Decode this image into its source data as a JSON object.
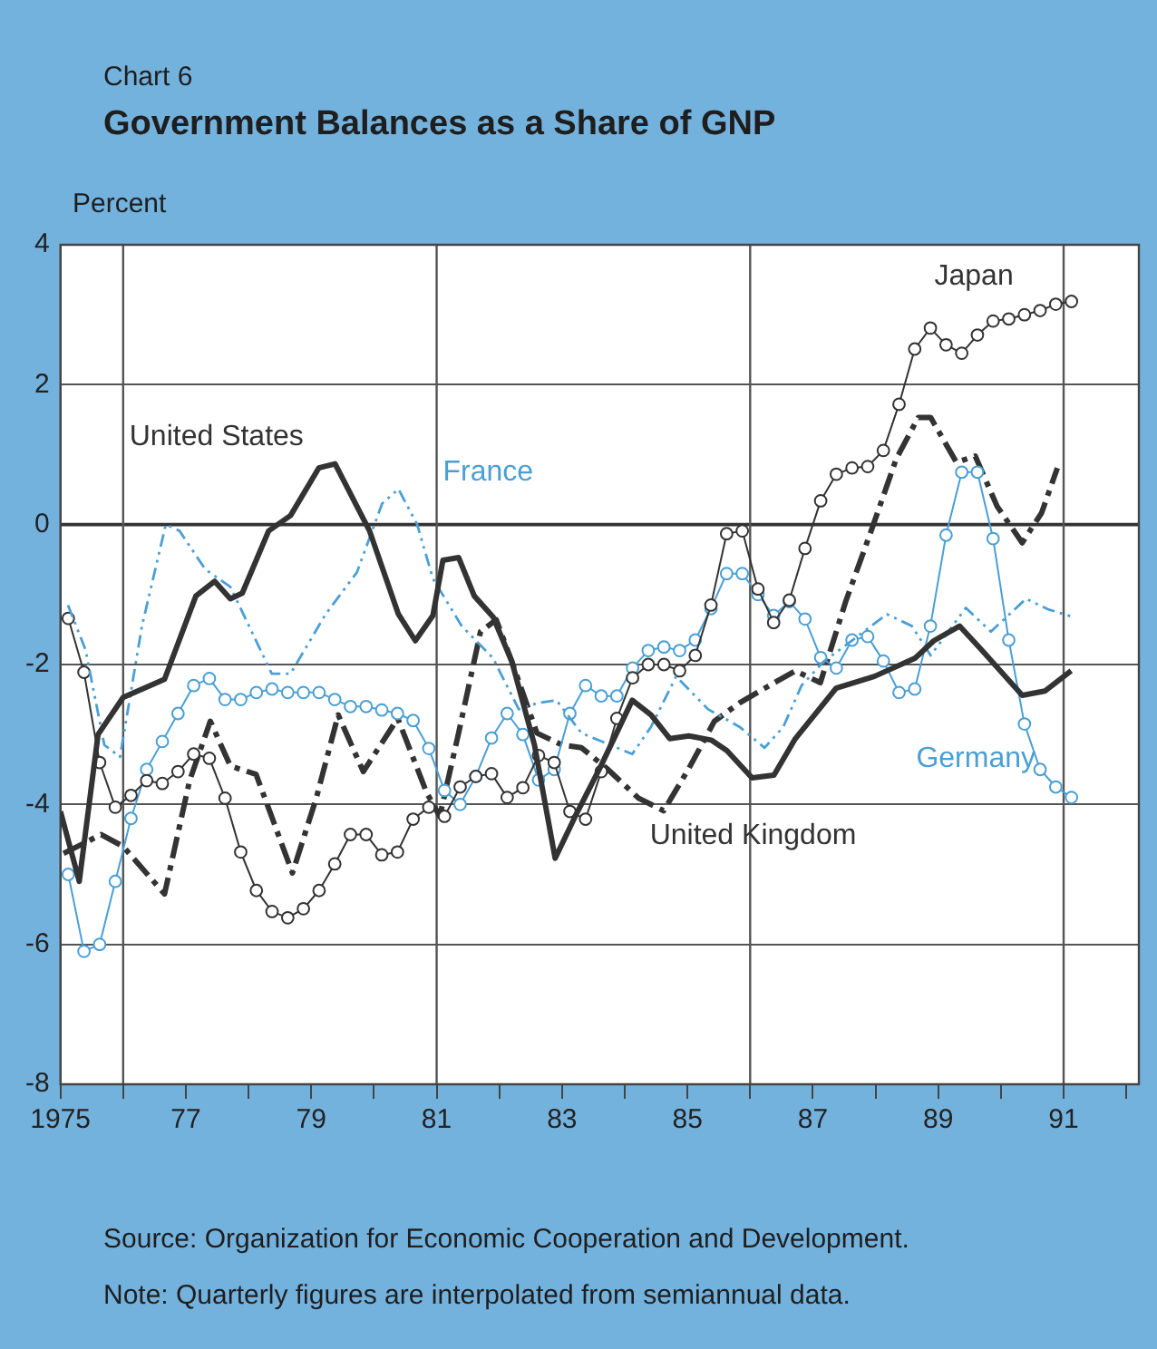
{
  "chart_data": {
    "type": "line",
    "subtitle": "Chart 6",
    "title": "Government Balances as a Share of GNP",
    "ylabel": "Percent",
    "xlim": [
      1975,
      1992.2
    ],
    "ylim": [
      -8,
      4
    ],
    "yticks": [
      -8,
      -6,
      -4,
      -2,
      0,
      2,
      4
    ],
    "xticks": [
      1975,
      {
        "value": 1976,
        "label": null
      },
      {
        "value": 1977,
        "label": "77"
      },
      {
        "value": 1978,
        "label": null
      },
      {
        "value": 1979,
        "label": "79"
      },
      {
        "value": 1980,
        "label": null
      },
      {
        "value": 1981,
        "label": "81"
      },
      {
        "value": 1982,
        "label": null
      },
      {
        "value": 1983,
        "label": "83"
      },
      {
        "value": 1984,
        "label": null
      },
      {
        "value": 1985,
        "label": "85"
      },
      {
        "value": 1986,
        "label": null
      },
      {
        "value": 1987,
        "label": "87"
      },
      {
        "value": 1988,
        "label": null
      },
      {
        "value": 1989,
        "label": "89"
      },
      {
        "value": 1990,
        "label": null
      },
      {
        "value": 1991,
        "label": "91"
      },
      {
        "value": 1992,
        "label": null
      }
    ],
    "grid": "y",
    "legend": false,
    "ref_lines": [
      {
        "axis": "y",
        "value": 0,
        "color": "#333333"
      },
      {
        "axis": "x",
        "value": 1976,
        "color": "#555555"
      },
      {
        "axis": "x",
        "value": 1981,
        "color": "#555555"
      },
      {
        "axis": "x",
        "value": 1986,
        "color": "#555555"
      },
      {
        "axis": "x",
        "value": 1991,
        "color": "#555555"
      }
    ],
    "series": [
      {
        "name": "United States",
        "color": "#333333",
        "line_style": "solid",
        "marker": "none",
        "x": [
          1975.0,
          1975.3,
          1975.6,
          1976.0,
          1976.66,
          1977.16,
          1977.46,
          1977.71,
          1977.9,
          1978.32,
          1978.67,
          1979.12,
          1979.38,
          1979.93,
          1980.39,
          1980.66,
          1980.94,
          1981.1,
          1981.35,
          1981.6,
          1981.9,
          1982.2,
          1982.56,
          1982.89,
          1983.21,
          1983.62,
          1984.12,
          1984.42,
          1984.72,
          1985.02,
          1985.38,
          1985.63,
          1986.03,
          1986.38,
          1986.72,
          1987.37,
          1987.98,
          1988.63,
          1988.93,
          1989.34,
          1989.69,
          1990.34,
          1990.7,
          1991.12
        ],
        "values": [
          -4.1,
          -5.1,
          -3.0,
          -2.47,
          -2.21,
          -1.02,
          -0.81,
          -1.06,
          -0.98,
          -0.09,
          0.13,
          0.81,
          0.87,
          -0.09,
          -1.28,
          -1.66,
          -1.3,
          -0.51,
          -0.47,
          -1.02,
          -1.32,
          -1.96,
          -3.15,
          -4.77,
          -4.17,
          -3.45,
          -2.51,
          -2.72,
          -3.06,
          -3.02,
          -3.08,
          -3.23,
          -3.62,
          -3.58,
          -3.06,
          -2.34,
          -2.17,
          -1.91,
          -1.66,
          -1.45,
          -1.79,
          -2.44,
          -2.38,
          -2.09
        ]
      },
      {
        "name": "France",
        "color": "#4a9fd5",
        "line_style": "dotted",
        "marker": "none",
        "x": [
          1975.12,
          1975.4,
          1975.7,
          1975.95,
          1976.3,
          1976.68,
          1976.9,
          1977.31,
          1977.71,
          1978.37,
          1978.67,
          1979.23,
          1979.73,
          1980.13,
          1980.39,
          1980.69,
          1980.94,
          1981.4,
          1981.9,
          1982.31,
          1982.61,
          1982.91,
          1983.31,
          1984.12,
          1984.42,
          1984.82,
          1985.33,
          1985.83,
          1986.23,
          1986.53,
          1986.82,
          1987.17,
          1987.62,
          1988.18,
          1988.58,
          1988.88,
          1989.44,
          1989.84,
          1990.09,
          1990.4,
          1990.75,
          1991.15
        ],
        "values": [
          -1.15,
          -1.79,
          -3.15,
          -3.32,
          -1.45,
          0.0,
          -0.09,
          -0.64,
          -0.89,
          -2.13,
          -2.13,
          -1.28,
          -0.68,
          0.3,
          0.51,
          0.0,
          -0.77,
          -1.45,
          -1.91,
          -2.64,
          -2.55,
          -2.51,
          -2.98,
          -3.28,
          -2.89,
          -2.17,
          -2.64,
          -2.89,
          -3.19,
          -2.89,
          -2.3,
          -1.96,
          -1.66,
          -1.28,
          -1.45,
          -1.87,
          -1.19,
          -1.53,
          -1.32,
          -1.06,
          -1.21,
          -1.32
        ]
      },
      {
        "name": "Japan",
        "color": "#333333",
        "line_style": "solid",
        "marker": "circle",
        "x": [
          1975.125,
          1975.375,
          1975.625,
          1975.875,
          1976.125,
          1976.375,
          1976.625,
          1976.875,
          1977.125,
          1977.375,
          1977.625,
          1977.875,
          1978.125,
          1978.375,
          1978.625,
          1978.875,
          1979.125,
          1979.375,
          1979.625,
          1979.875,
          1980.125,
          1980.375,
          1980.625,
          1980.875,
          1981.125,
          1981.375,
          1981.625,
          1981.875,
          1982.125,
          1982.375,
          1982.625,
          1982.875,
          1983.125,
          1983.375,
          1983.625,
          1983.875,
          1984.125,
          1984.375,
          1984.625,
          1984.875,
          1985.125,
          1985.375,
          1985.625,
          1985.875,
          1986.125,
          1986.375,
          1986.625,
          1986.875,
          1987.125,
          1987.375,
          1987.625,
          1987.875,
          1988.125,
          1988.375,
          1988.625,
          1988.875,
          1989.125,
          1989.375,
          1989.625,
          1989.875,
          1990.125,
          1990.375,
          1990.625,
          1990.875,
          1991.125
        ],
        "values": [
          -1.34,
          -2.11,
          -3.4,
          -4.04,
          -3.87,
          -3.66,
          -3.7,
          -3.53,
          -3.28,
          -3.34,
          -3.91,
          -4.68,
          -5.23,
          -5.53,
          -5.62,
          -5.49,
          -5.23,
          -4.85,
          -4.43,
          -4.43,
          -4.72,
          -4.68,
          -4.21,
          -4.04,
          -4.17,
          -3.75,
          -3.6,
          -3.56,
          -3.9,
          -3.76,
          -3.3,
          -3.4,
          -4.1,
          -4.21,
          -3.53,
          -2.77,
          -2.19,
          -2.0,
          -2.0,
          -2.09,
          -1.87,
          -1.15,
          -0.13,
          -0.09,
          -0.92,
          -1.4,
          -1.08,
          -0.34,
          0.34,
          0.72,
          0.81,
          0.83,
          1.06,
          1.72,
          2.51,
          2.81,
          2.57,
          2.45,
          2.71,
          2.91,
          2.94,
          3.0,
          3.06,
          3.15,
          3.19
        ]
      },
      {
        "name": "Germany",
        "color": "#4a9fd5",
        "line_style": "solid",
        "marker": "circle",
        "x": [
          1975.125,
          1975.375,
          1975.625,
          1975.875,
          1976.125,
          1976.375,
          1976.625,
          1976.875,
          1977.125,
          1977.375,
          1977.625,
          1977.875,
          1978.125,
          1978.375,
          1978.625,
          1978.875,
          1979.125,
          1979.375,
          1979.625,
          1979.875,
          1980.125,
          1980.375,
          1980.625,
          1980.875,
          1981.125,
          1981.375,
          1981.625,
          1981.875,
          1982.125,
          1982.375,
          1982.625,
          1982.875,
          1983.125,
          1983.375,
          1983.625,
          1983.875,
          1984.125,
          1984.375,
          1984.625,
          1984.875,
          1985.125,
          1985.375,
          1985.625,
          1985.875,
          1986.125,
          1986.375,
          1986.625,
          1986.875,
          1987.125,
          1987.375,
          1987.625,
          1987.875,
          1988.125,
          1988.375,
          1988.625,
          1988.875,
          1989.125,
          1989.375,
          1989.625,
          1989.875,
          1990.125,
          1990.375,
          1990.625,
          1990.875,
          1991.125
        ],
        "values": [
          -5.0,
          -6.1,
          -6.0,
          -5.1,
          -4.2,
          -3.5,
          -3.1,
          -2.7,
          -2.3,
          -2.2,
          -2.5,
          -2.5,
          -2.4,
          -2.35,
          -2.4,
          -2.4,
          -2.4,
          -2.5,
          -2.6,
          -2.6,
          -2.65,
          -2.7,
          -2.8,
          -3.2,
          -3.8,
          -4.0,
          -3.6,
          -3.05,
          -2.7,
          -3.0,
          -3.65,
          -3.5,
          -2.7,
          -2.3,
          -2.45,
          -2.45,
          -2.05,
          -1.8,
          -1.75,
          -1.8,
          -1.65,
          -1.2,
          -0.7,
          -0.7,
          -1.0,
          -1.3,
          -1.1,
          -1.35,
          -1.9,
          -2.05,
          -1.65,
          -1.6,
          -1.95,
          -2.4,
          -2.35,
          -1.45,
          -0.15,
          0.75,
          0.75,
          -0.2,
          -1.65,
          -2.85,
          -3.5,
          -3.75,
          -3.9
        ]
      },
      {
        "name": "United Kingdom",
        "color": "#333333",
        "line_style": "dashed",
        "marker": "none",
        "x": [
          1975.05,
          1975.65,
          1976.0,
          1976.66,
          1977.06,
          1977.39,
          1977.71,
          1978.12,
          1978.7,
          1979.08,
          1979.43,
          1979.83,
          1980.38,
          1980.84,
          1981.05,
          1981.35,
          1981.7,
          1981.95,
          1982.2,
          1982.6,
          1983.0,
          1983.31,
          1983.72,
          1984.22,
          1984.62,
          1985.02,
          1985.43,
          1985.83,
          1986.23,
          1986.72,
          1987.12,
          1987.52,
          1987.93,
          1988.33,
          1988.68,
          1988.88,
          1989.29,
          1989.59,
          1989.94,
          1990.34,
          1990.65,
          1990.9
        ],
        "values": [
          -4.7,
          -4.43,
          -4.6,
          -5.28,
          -3.66,
          -2.81,
          -3.45,
          -3.57,
          -4.98,
          -3.91,
          -2.72,
          -3.53,
          -2.77,
          -3.83,
          -4.17,
          -2.98,
          -1.53,
          -1.36,
          -1.96,
          -2.98,
          -3.15,
          -3.19,
          -3.49,
          -3.91,
          -4.09,
          -3.49,
          -2.81,
          -2.55,
          -2.34,
          -2.09,
          -2.26,
          -1.11,
          -0.09,
          0.94,
          1.53,
          1.53,
          0.89,
          0.98,
          0.26,
          -0.26,
          0.17,
          0.81
        ]
      }
    ],
    "annotations": [
      "Source:  Organization for Economic Cooperation and Development.",
      "Note:  Quarterly figures are interpolated from semiannual data."
    ]
  }
}
